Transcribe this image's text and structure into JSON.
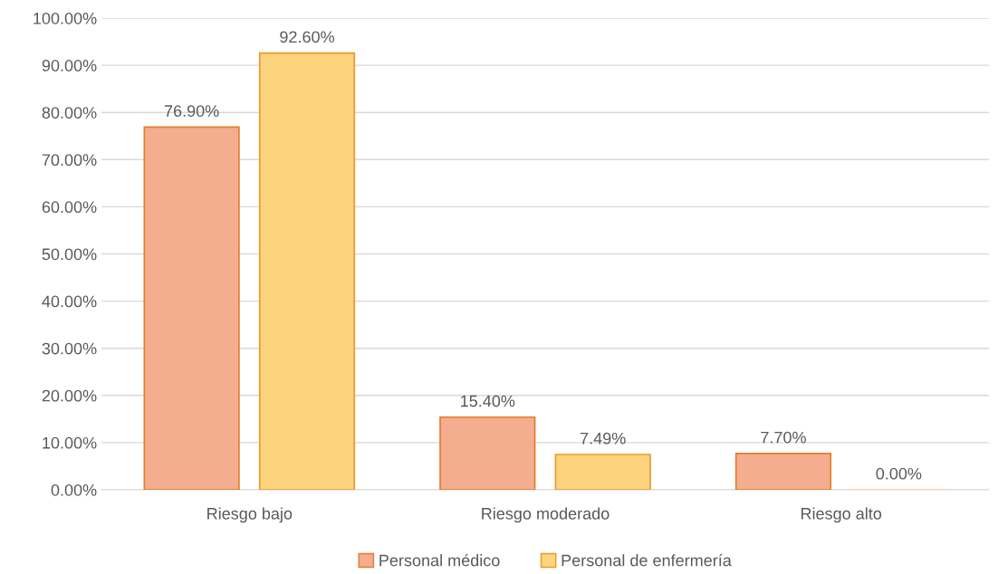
{
  "chart_data": {
    "type": "bar",
    "categories": [
      "Riesgo bajo",
      "Riesgo moderado",
      "Riesgo alto"
    ],
    "series": [
      {
        "name": "Personal médico",
        "color": "#f4ad8e",
        "values": [
          76.9,
          15.4,
          7.7
        ],
        "value_labels": [
          "76.90%",
          "15.40%",
          "7.70%"
        ]
      },
      {
        "name": "Personal de enfermería",
        "color": "#fdd47e",
        "values": [
          92.6,
          7.49,
          0.0
        ],
        "value_labels": [
          "92.60%",
          "7.49%",
          "0.00%"
        ]
      }
    ],
    "ylim": [
      0,
      100
    ],
    "yticks": [
      {
        "value": 0,
        "label": "0.00%"
      },
      {
        "value": 10,
        "label": "10.00%"
      },
      {
        "value": 20,
        "label": "20.00%"
      },
      {
        "value": 30,
        "label": "30.00%"
      },
      {
        "value": 40,
        "label": "40.00%"
      },
      {
        "value": 50,
        "label": "50.00%"
      },
      {
        "value": 60,
        "label": "60.00%"
      },
      {
        "value": 70,
        "label": "70.00%"
      },
      {
        "value": 80,
        "label": "80.00%"
      },
      {
        "value": 90,
        "label": "90.00%"
      },
      {
        "value": 100,
        "label": "100.00%"
      }
    ],
    "grid": "y",
    "legend": "bottom"
  }
}
